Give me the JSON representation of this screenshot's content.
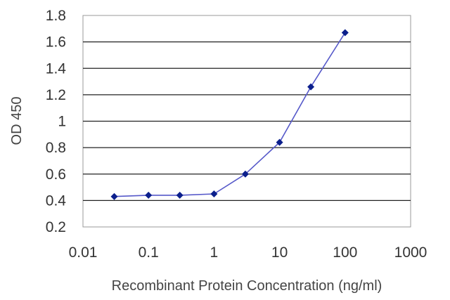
{
  "chart_data": {
    "type": "line",
    "title": "",
    "xlabel": "Recombinant Protein Concentration (ng/ml)",
    "ylabel": "OD 450",
    "x_scale": "log",
    "xlim": [
      0.01,
      1000
    ],
    "ylim": [
      0.2,
      1.8
    ],
    "x_ticks": [
      "0.01",
      "0.1",
      "1",
      "10",
      "100",
      "1000"
    ],
    "y_ticks": [
      "0.2",
      "0.4",
      "0.6",
      "0.8",
      "1",
      "1.2",
      "1.4",
      "1.6",
      "1.8"
    ],
    "grid": "horizontal",
    "legend": "none",
    "series": [
      {
        "x": [
          0.03,
          0.1,
          0.3,
          1,
          3,
          10,
          30,
          100
        ],
        "y": [
          0.43,
          0.44,
          0.44,
          0.45,
          0.6,
          0.84,
          1.26,
          1.67
        ]
      }
    ],
    "colors": {
      "line": "#5558c9",
      "marker": "#0b1f8c",
      "grid": "#222222",
      "plot_border": "#999999",
      "plot_background": "#ffffff"
    }
  }
}
